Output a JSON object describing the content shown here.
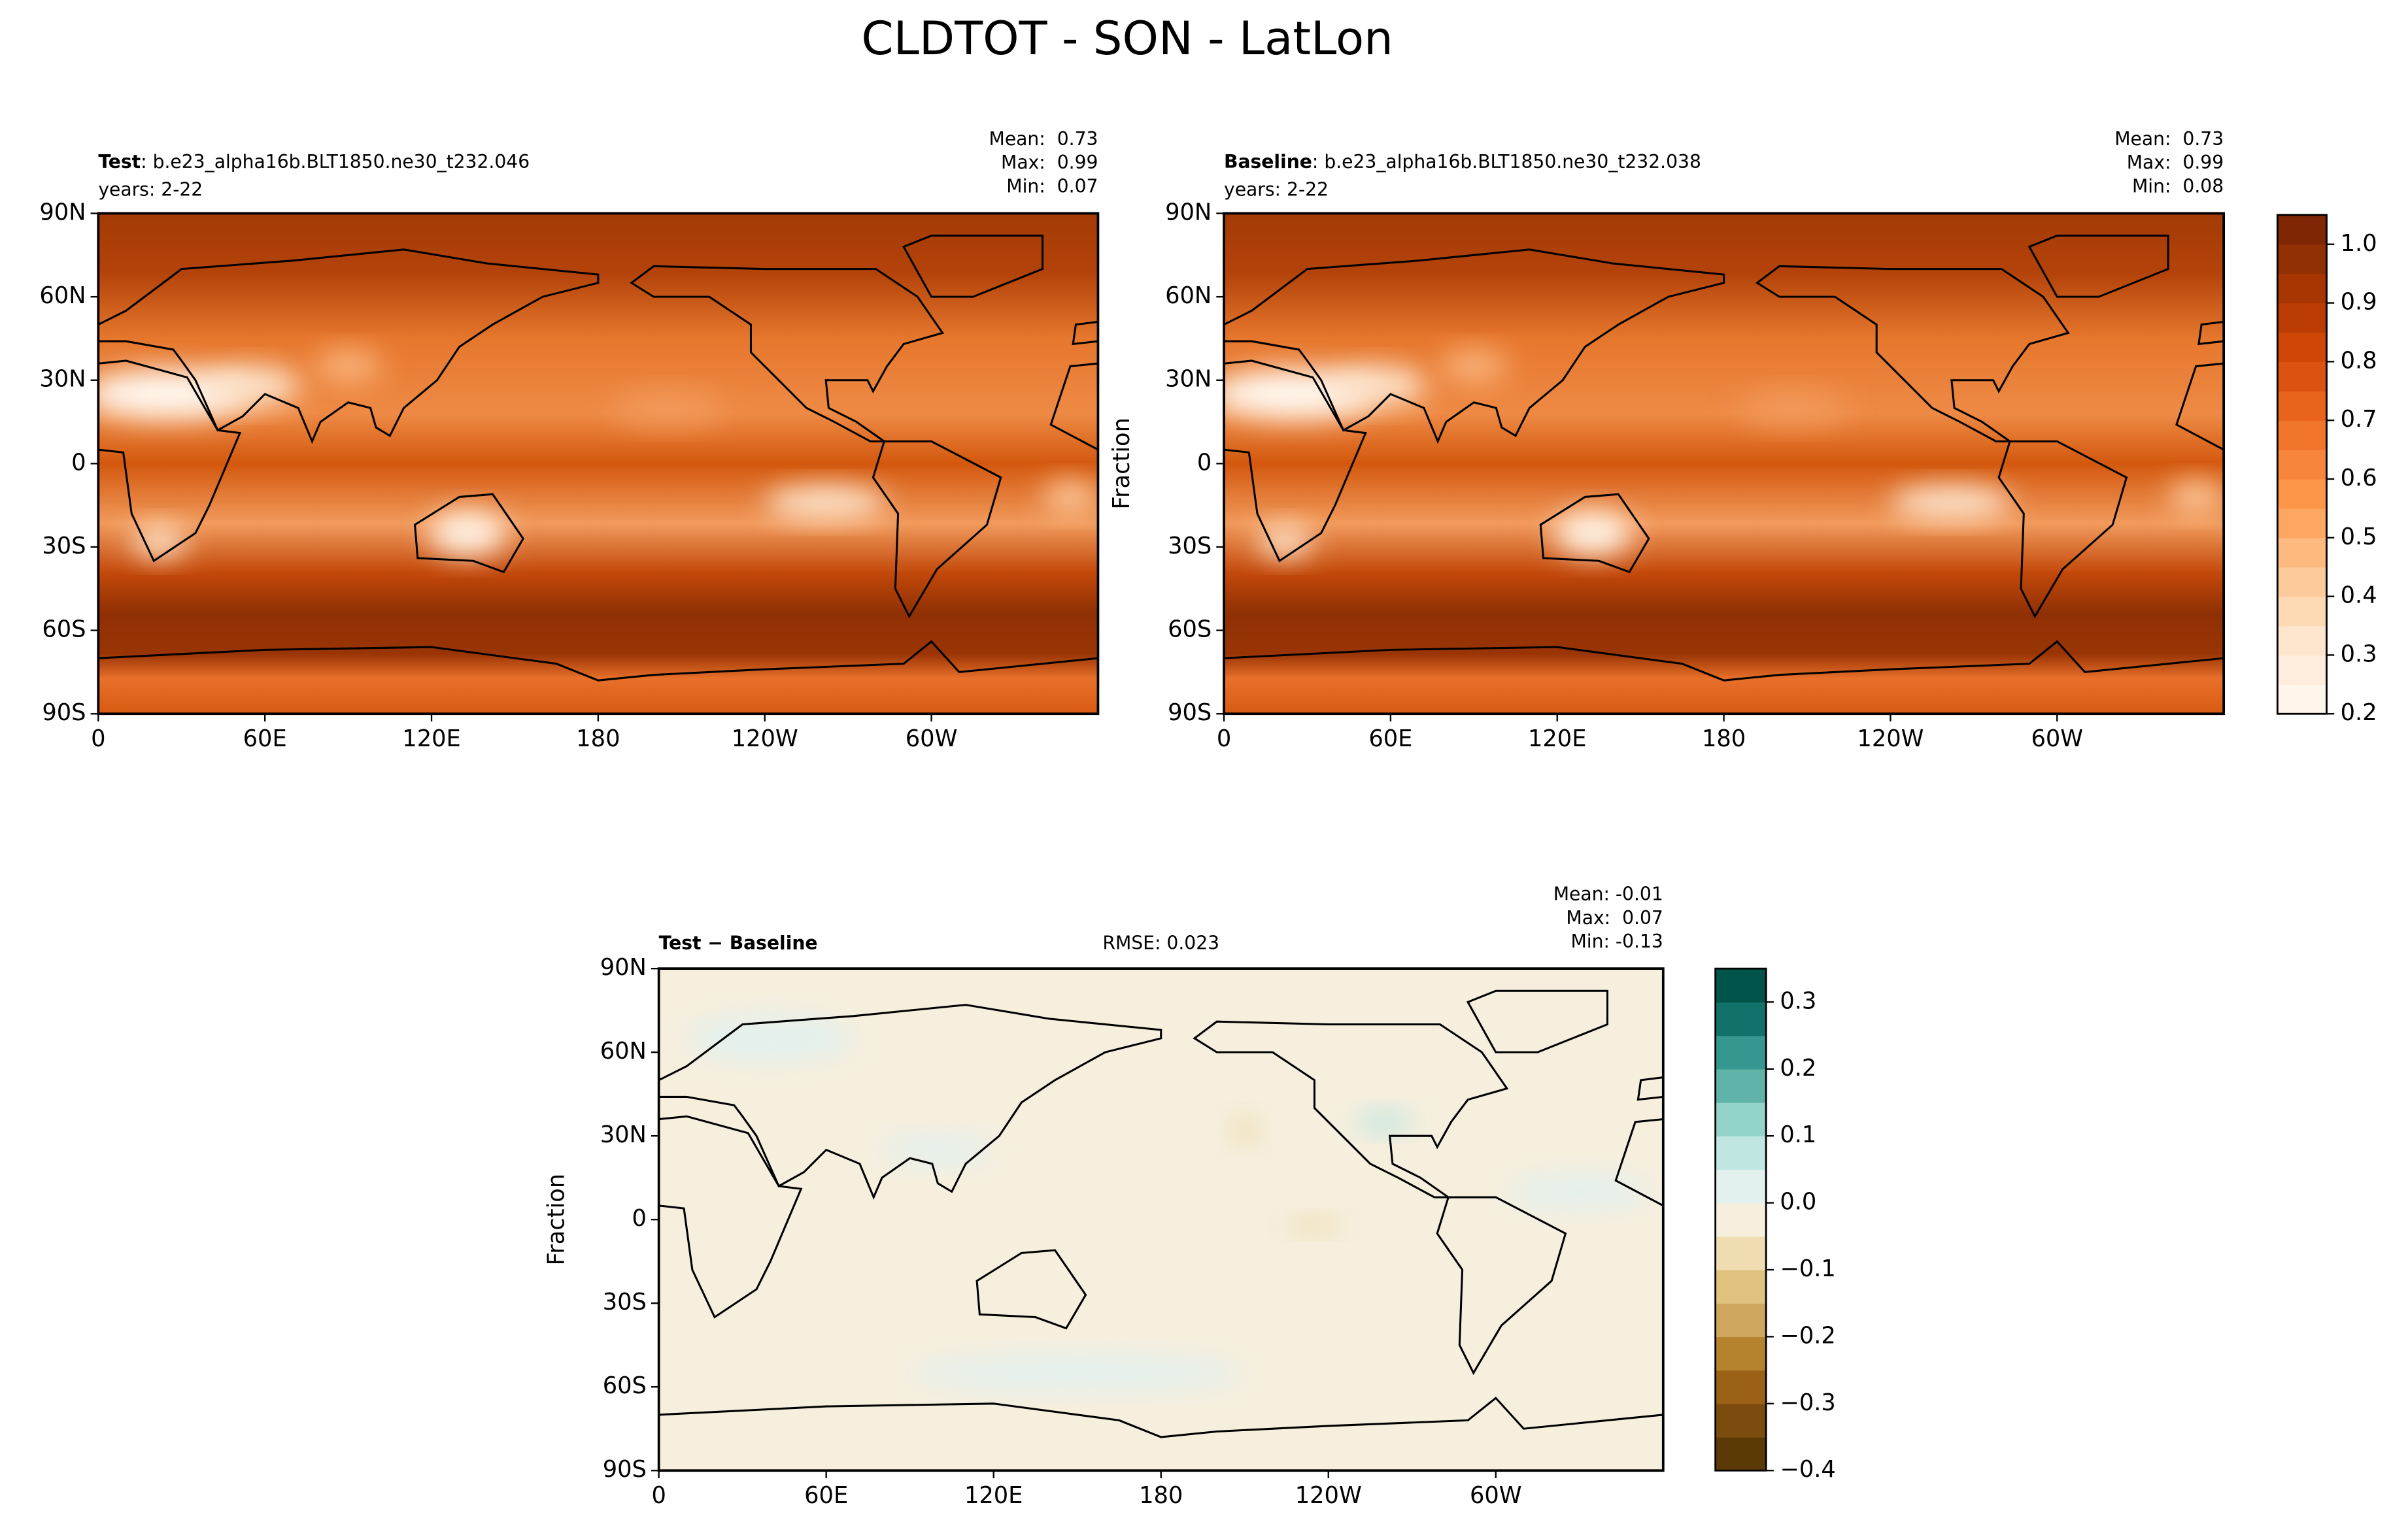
{
  "title": "CLDTOT - SON - LatLon",
  "lat_ticks": [
    "90N",
    "60N",
    "30N",
    "0",
    "30S",
    "60S",
    "90S"
  ],
  "lon_ticks": [
    "0",
    "60E",
    "120E",
    "180",
    "120W",
    "60W"
  ],
  "panels": [
    {
      "label": "Test",
      "file": ": b.e23_alpha16b.BLT1850.ne30_t232.046",
      "years": "years: 2-22",
      "stats": [
        "Mean:  0.73",
        "Max:  0.99",
        "Min:  0.07"
      ]
    },
    {
      "label": "Baseline",
      "file": ": b.e23_alpha16b.BLT1850.ne30_t232.038",
      "years": "years: 2-22",
      "stats": [
        "Mean:  0.73",
        "Max:  0.99",
        "Min:  0.08"
      ],
      "ylabel": "Fraction"
    },
    {
      "label": "Test − Baseline",
      "rmse": "RMSE: 0.023",
      "stats": [
        "Mean: -0.01",
        "Max:  0.07",
        "Min: -0.13"
      ],
      "ylabel": "Fraction"
    }
  ],
  "colorbars": [
    {
      "range": [
        0.2,
        1.05
      ],
      "colors": [
        "#fff5eb",
        "#feeddc",
        "#fde5ce",
        "#fdd9b4",
        "#fdcb9b",
        "#fdba7f",
        "#fda762",
        "#fd9649",
        "#f8863a",
        "#f2752c",
        "#e8631c",
        "#dc5311",
        "#cf4607",
        "#bb3d03",
        "#a73603",
        "#913003",
        "#7f2704"
      ],
      "ticks": [
        0.2,
        0.3,
        0.4,
        0.5,
        0.6,
        0.7,
        0.8,
        0.9,
        {
          "value": 1,
          "label": "1.0"
        }
      ]
    },
    {
      "range": [
        -0.4,
        0.35
      ],
      "colors": [
        "#5b3a07",
        "#7b4c0d",
        "#9b6217",
        "#b5832e",
        "#cfa65d",
        "#dfc27e",
        "#efdcb0",
        "#f6efde",
        "#e2f0ee",
        "#c0e6e1",
        "#93d3c9",
        "#5fb3a8",
        "#35978f",
        "#12716a",
        "#01544a"
      ],
      "ticks": [
        {
          "value": -0.4,
          "label": "−0.4"
        },
        {
          "value": -0.3,
          "label": "−0.3"
        },
        {
          "value": -0.2,
          "label": "−0.2"
        },
        {
          "value": -0.1,
          "label": "−0.1"
        },
        {
          "value": 0,
          "label": "0.0"
        },
        0.1,
        0.2,
        0.3
      ]
    }
  ]
}
